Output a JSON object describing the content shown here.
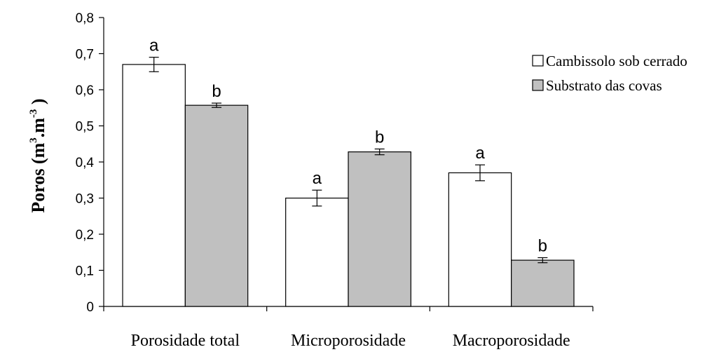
{
  "chart_data": {
    "type": "bar",
    "categories": [
      "Porosidade total",
      "Microporosidade",
      "Macroporosidade"
    ],
    "series": [
      {
        "name": "Cambissolo sob cerrado",
        "color": "#ffffff",
        "values": [
          0.67,
          0.3,
          0.37
        ],
        "errors": [
          0.02,
          0.022,
          0.022
        ],
        "labels": [
          "a",
          "a",
          "a"
        ]
      },
      {
        "name": "Substrato das covas",
        "color": "#c0c0c0",
        "values": [
          0.557,
          0.428,
          0.128
        ],
        "errors": [
          0.006,
          0.008,
          0.007
        ],
        "labels": [
          "b",
          "b",
          "b"
        ]
      }
    ],
    "xlabel": "",
    "ylabel": {
      "main": "Poros (m",
      "sup1": "3",
      "mid": ".m",
      "sup2": "-3",
      "end": " )"
    },
    "ylim": [
      0,
      0.8
    ],
    "yticks": [
      "0",
      "0,1",
      "0,2",
      "0,3",
      "0,4",
      "0,5",
      "0,6",
      "0,7",
      "0,8"
    ],
    "grid": false,
    "legend_position": "right"
  }
}
